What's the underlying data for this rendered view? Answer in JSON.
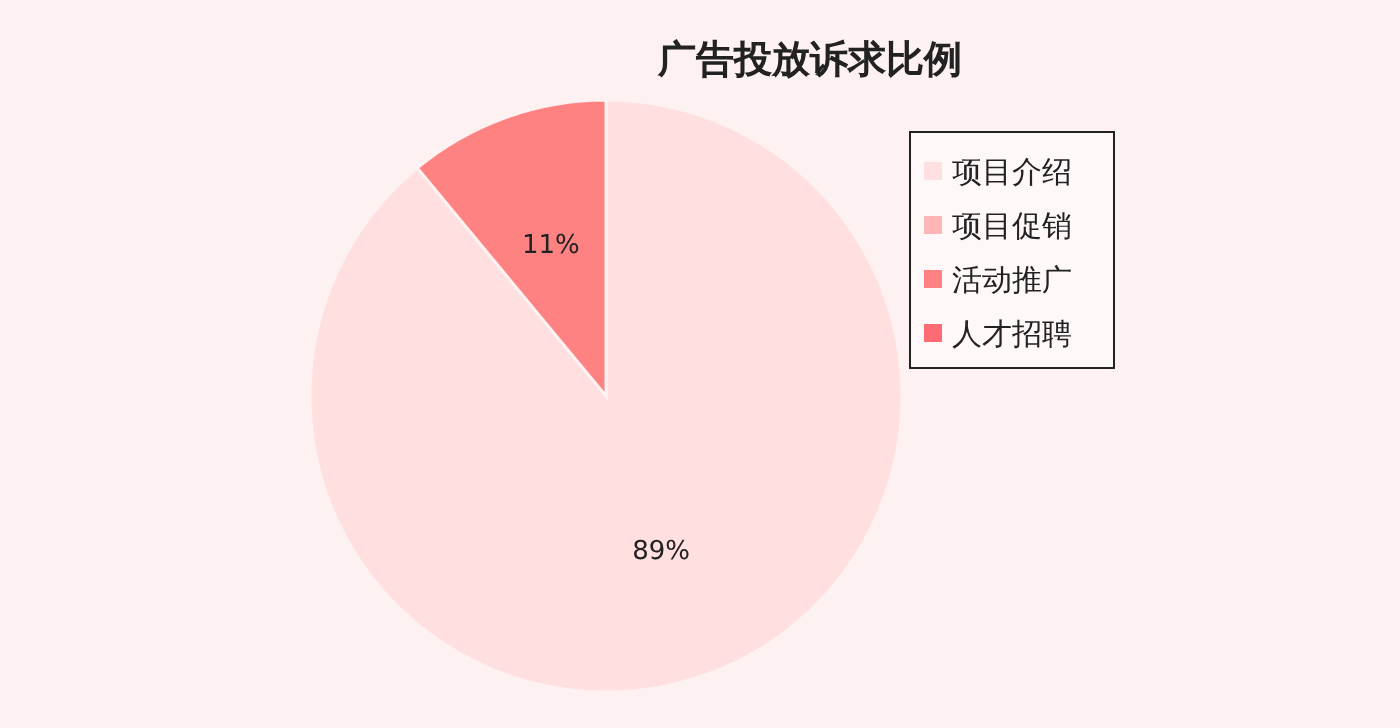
{
  "chart_data": {
    "type": "pie",
    "title": "广告投放诉求比例",
    "categories": [
      "项目介绍",
      "项目促销",
      "活动推广",
      "人才招聘"
    ],
    "values": [
      89,
      0,
      11,
      0
    ],
    "colors": [
      "#ffdfdf",
      "#ffb5b5",
      "#ff8282",
      "#ff6b73"
    ],
    "value_labels": [
      "89%",
      null,
      "11%",
      null
    ],
    "legend": "right"
  }
}
